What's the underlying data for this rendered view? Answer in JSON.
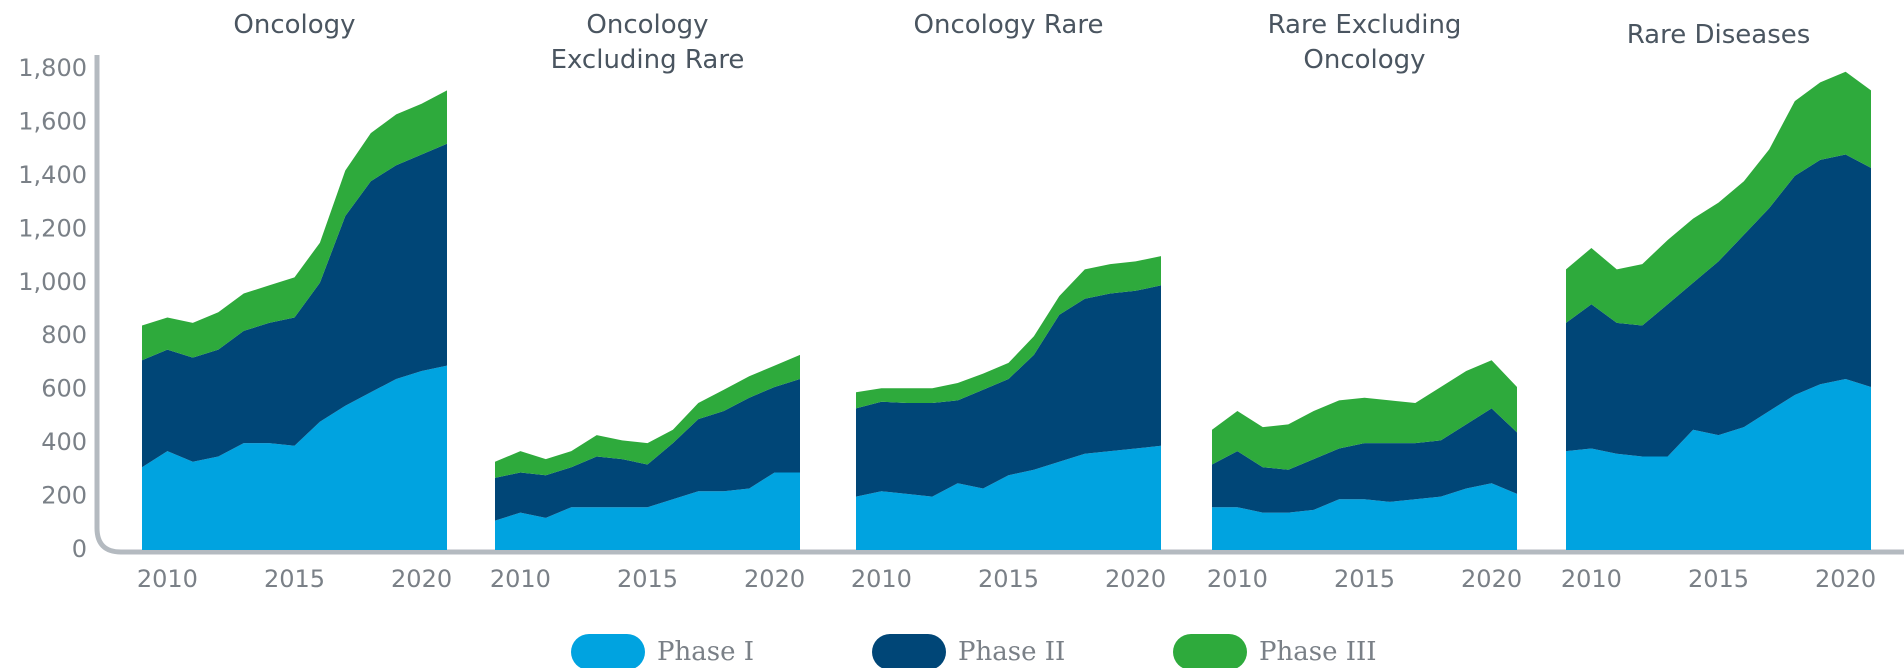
{
  "chart_data": {
    "type": "area",
    "stacked": true,
    "x": [
      2009,
      2010,
      2011,
      2012,
      2013,
      2014,
      2015,
      2016,
      2017,
      2018,
      2019,
      2020,
      2021
    ],
    "xlim": [
      2009,
      2021
    ],
    "xticks": [
      2010,
      2015,
      2020
    ],
    "ylim": [
      0,
      1800
    ],
    "yticks": [
      0,
      200,
      400,
      600,
      800,
      {
        "value": 1000,
        "label": "1,000"
      },
      {
        "value": 1200,
        "label": "1,200"
      },
      {
        "value": 1400,
        "label": "1,400"
      },
      {
        "value": 1600,
        "label": "1,600"
      },
      {
        "value": 1800,
        "label": "1,800"
      }
    ],
    "legend": "bottom",
    "series": [
      {
        "name": "Phase I",
        "color": "#00a3e0"
      },
      {
        "name": "Phase II",
        "color": "#004677"
      },
      {
        "name": "Phase III",
        "color": "#2eaa3c"
      }
    ],
    "panels": [
      {
        "title": "Oncology",
        "values": [
          [
            310,
            370,
            330,
            350,
            400,
            400,
            390,
            480,
            540,
            590,
            640,
            670,
            690
          ],
          [
            400,
            380,
            390,
            400,
            420,
            450,
            480,
            520,
            710,
            790,
            800,
            810,
            830
          ],
          [
            130,
            120,
            130,
            140,
            140,
            140,
            150,
            150,
            170,
            180,
            190,
            190,
            200
          ]
        ]
      },
      {
        "title": "Oncology Excluding Rare",
        "values": [
          [
            110,
            140,
            120,
            160,
            160,
            160,
            160,
            190,
            220,
            220,
            230,
            290,
            290
          ],
          [
            160,
            150,
            160,
            150,
            190,
            180,
            160,
            210,
            270,
            300,
            340,
            320,
            350
          ],
          [
            60,
            80,
            60,
            60,
            80,
            70,
            80,
            50,
            60,
            80,
            80,
            80,
            90
          ]
        ]
      },
      {
        "title": "Oncology Rare",
        "values": [
          [
            200,
            220,
            210,
            200,
            250,
            230,
            280,
            300,
            330,
            360,
            370,
            380,
            390
          ],
          [
            330,
            335,
            340,
            350,
            310,
            370,
            360,
            430,
            550,
            580,
            590,
            590,
            600
          ],
          [
            60,
            50,
            55,
            55,
            65,
            60,
            60,
            70,
            70,
            110,
            110,
            110,
            110
          ]
        ]
      },
      {
        "title": "Rare Excluding Oncology",
        "values": [
          [
            160,
            160,
            140,
            140,
            150,
            190,
            190,
            180,
            190,
            200,
            230,
            250,
            210
          ],
          [
            160,
            210,
            170,
            160,
            190,
            190,
            210,
            220,
            210,
            210,
            240,
            280,
            230
          ],
          [
            130,
            150,
            150,
            170,
            180,
            180,
            170,
            160,
            150,
            200,
            200,
            180,
            170
          ]
        ]
      },
      {
        "title": "Rare Diseases",
        "values": [
          [
            370,
            380,
            360,
            350,
            350,
            450,
            430,
            460,
            520,
            580,
            620,
            640,
            610
          ],
          [
            480,
            540,
            490,
            490,
            570,
            550,
            650,
            720,
            760,
            820,
            840,
            840,
            820
          ],
          [
            200,
            210,
            200,
            230,
            240,
            240,
            220,
            200,
            220,
            280,
            290,
            310,
            290
          ]
        ]
      }
    ]
  }
}
